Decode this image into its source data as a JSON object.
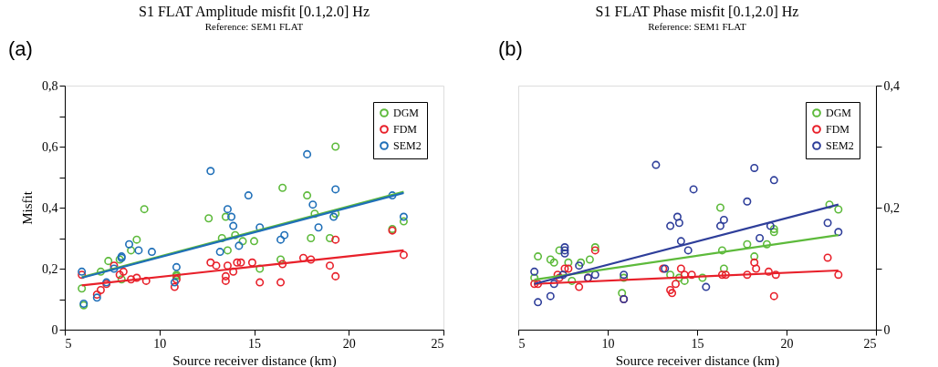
{
  "chart_data": [
    {
      "type": "scatter",
      "title": "S1 FLAT Amplitude misfit [0.1,2.0] Hz",
      "subtitle": "Reference: SEM1 FLAT",
      "xlabel": "Source receiver distance (km)",
      "ylabel": "Misfit",
      "annotations": [
        "(a)"
      ],
      "xlim": [
        5,
        25
      ],
      "xticks": [
        5,
        10,
        15,
        20,
        25
      ],
      "ylim": [
        0,
        0.8
      ],
      "yticks": [
        0,
        {
          "value": 0.1,
          "label": null
        },
        {
          "value": 0.2,
          "label": "0,2"
        },
        {
          "value": 0.3,
          "label": null
        },
        {
          "value": 0.4,
          "label": "0,4"
        },
        {
          "value": 0.5,
          "label": null
        },
        {
          "value": 0.6,
          "label": "0,6"
        },
        {
          "value": 0.7,
          "label": null
        },
        {
          "value": 0.8,
          "label": "0,8"
        }
      ],
      "legend": "top right",
      "series": [
        {
          "name": "DGM",
          "color": "#5dba3b",
          "marker": "circle",
          "x": [
            5.9,
            6.0,
            6.9,
            7.3,
            7.9,
            8.0,
            8.5,
            8.8,
            9.2,
            10.9,
            10.9,
            12.6,
            13.3,
            13.5,
            13.6,
            14.0,
            14.4,
            15.0,
            15.3,
            16.5,
            16.4,
            17.8,
            18.0,
            18.2,
            19.0,
            19.3,
            19.3,
            22.3,
            22.9
          ],
          "values": [
            0.135,
            0.08,
            0.19,
            0.225,
            0.23,
            0.165,
            0.26,
            0.295,
            0.395,
            0.18,
            0.175,
            0.365,
            0.3,
            0.37,
            0.26,
            0.31,
            0.29,
            0.29,
            0.2,
            0.465,
            0.23,
            0.44,
            0.3,
            0.38,
            0.3,
            0.6,
            0.38,
            0.33,
            0.355
          ]
        },
        {
          "name": "FDM",
          "color": "#e8202a",
          "marker": "circle",
          "x": [
            5.9,
            6.7,
            6.9,
            7.2,
            7.6,
            7.9,
            8.1,
            8.5,
            8.8,
            9.3,
            10.8,
            10.9,
            12.7,
            13.0,
            13.5,
            13.5,
            13.6,
            13.9,
            14.1,
            14.3,
            14.9,
            15.3,
            16.4,
            16.5,
            17.6,
            18.0,
            19.0,
            19.3,
            19.3,
            22.3,
            22.9
          ],
          "values": [
            0.18,
            0.115,
            0.13,
            0.15,
            0.21,
            0.18,
            0.19,
            0.165,
            0.17,
            0.16,
            0.14,
            0.165,
            0.22,
            0.21,
            0.175,
            0.16,
            0.21,
            0.19,
            0.22,
            0.22,
            0.22,
            0.155,
            0.155,
            0.215,
            0.235,
            0.23,
            0.21,
            0.295,
            0.175,
            0.325,
            0.245
          ]
        },
        {
          "name": "SEM2",
          "color": "#1f6fb8",
          "marker": "circle",
          "x": [
            5.9,
            6.0,
            6.7,
            7.2,
            7.6,
            8.0,
            8.0,
            8.4,
            8.9,
            9.6,
            10.9,
            10.8,
            12.7,
            13.2,
            13.6,
            13.8,
            13.9,
            14.2,
            14.7,
            15.3,
            16.4,
            16.6,
            17.8,
            18.1,
            18.4,
            19.2,
            19.3,
            22.3,
            22.9
          ],
          "values": [
            0.19,
            0.085,
            0.105,
            0.155,
            0.2,
            0.24,
            0.235,
            0.28,
            0.26,
            0.255,
            0.205,
            0.155,
            0.52,
            0.255,
            0.395,
            0.37,
            0.34,
            0.275,
            0.44,
            0.335,
            0.295,
            0.31,
            0.575,
            0.41,
            0.335,
            0.37,
            0.46,
            0.44,
            0.37
          ]
        },
        {
          "type": "line",
          "color": "#5dba3b",
          "x": [
            5.9,
            22.9
          ],
          "values": [
            0.172,
            0.452
          ]
        },
        {
          "type": "line",
          "color": "#e8202a",
          "x": [
            5.9,
            22.9
          ],
          "values": [
            0.145,
            0.26
          ]
        },
        {
          "type": "line",
          "color": "#1f6fb8",
          "x": [
            5.9,
            22.9
          ],
          "values": [
            0.17,
            0.448
          ]
        }
      ]
    },
    {
      "type": "scatter",
      "title": "S1 FLAT Phase misfit [0.1,2.0] Hz",
      "subtitle": "Reference: SEM1 FLAT",
      "xlabel": "Source receiver distance (km)",
      "annotations": [
        "(b)"
      ],
      "xlim": [
        5,
        25
      ],
      "xticks": [
        5,
        10,
        15,
        20,
        25
      ],
      "y2lim": [
        0,
        0.4
      ],
      "y2ticks": [
        0,
        {
          "value": 0.1,
          "label": null
        },
        {
          "value": 0.2,
          "label": "0,2"
        },
        {
          "value": 0.3,
          "label": null
        },
        {
          "value": 0.4,
          "label": "0,4"
        }
      ],
      "legend": "top right",
      "series": [
        {
          "name": "DGM",
          "color": "#5dba3b",
          "marker": "circle",
          "axis": "y2",
          "x": [
            5.9,
            6.1,
            6.8,
            7.0,
            7.3,
            7.8,
            8.0,
            8.5,
            9.0,
            9.3,
            10.8,
            10.9,
            13.5,
            14.0,
            14.3,
            15.3,
            16.3,
            16.4,
            16.5,
            17.8,
            18.2,
            18.9,
            19.3,
            19.3,
            22.4,
            22.9
          ],
          "values": [
            0.085,
            0.12,
            0.115,
            0.11,
            0.13,
            0.11,
            0.08,
            0.11,
            0.115,
            0.135,
            0.06,
            0.085,
            0.09,
            0.085,
            0.08,
            0.085,
            0.2,
            0.13,
            0.1,
            0.14,
            0.12,
            0.14,
            0.16,
            0.165,
            0.205,
            0.197
          ]
        },
        {
          "name": "FDM",
          "color": "#e8202a",
          "marker": "circle",
          "axis": "y2",
          "x": [
            5.9,
            6.1,
            7.2,
            7.3,
            7.6,
            7.8,
            8.4,
            8.9,
            9.3,
            10.9,
            13.1,
            13.5,
            13.6,
            13.8,
            14.1,
            14.3,
            14.7,
            16.4,
            16.6,
            17.8,
            18.2,
            18.3,
            19.0,
            19.3,
            19.4,
            22.3,
            22.9
          ],
          "values": [
            0.075,
            0.075,
            0.09,
            0.085,
            0.1,
            0.1,
            0.07,
            0.085,
            0.13,
            0.05,
            0.1,
            0.065,
            0.06,
            0.075,
            0.1,
            0.09,
            0.09,
            0.09,
            0.09,
            0.09,
            0.11,
            0.1,
            0.095,
            0.055,
            0.09,
            0.118,
            0.09
          ]
        },
        {
          "name": "SEM2",
          "color": "#2e3e9a",
          "marker": "circle",
          "axis": "y2",
          "x": [
            5.9,
            6.1,
            6.8,
            7.0,
            7.5,
            7.6,
            7.6,
            7.6,
            8.4,
            8.9,
            9.3,
            10.9,
            10.9,
            12.7,
            13.2,
            13.5,
            13.9,
            14.0,
            14.1,
            14.5,
            14.8,
            15.5,
            16.3,
            16.5,
            17.8,
            18.2,
            18.5,
            19.1,
            19.3,
            22.3,
            22.9
          ],
          "values": [
            0.095,
            0.045,
            0.055,
            0.075,
            0.09,
            0.13,
            0.135,
            0.125,
            0.105,
            0.085,
            0.09,
            0.05,
            0.09,
            0.27,
            0.1,
            0.17,
            0.185,
            0.175,
            0.145,
            0.13,
            0.23,
            0.07,
            0.17,
            0.18,
            0.21,
            0.265,
            0.15,
            0.17,
            0.245,
            0.175,
            0.16
          ]
        },
        {
          "type": "line",
          "color": "#5dba3b",
          "axis": "y2",
          "x": [
            5.9,
            22.9
          ],
          "values": [
            0.082,
            0.155
          ]
        },
        {
          "type": "line",
          "color": "#e8202a",
          "axis": "y2",
          "x": [
            5.9,
            22.9
          ],
          "values": [
            0.075,
            0.097
          ]
        },
        {
          "type": "line",
          "color": "#2e3e9a",
          "axis": "y2",
          "x": [
            5.9,
            22.9
          ],
          "values": [
            0.075,
            0.205
          ]
        }
      ]
    }
  ]
}
